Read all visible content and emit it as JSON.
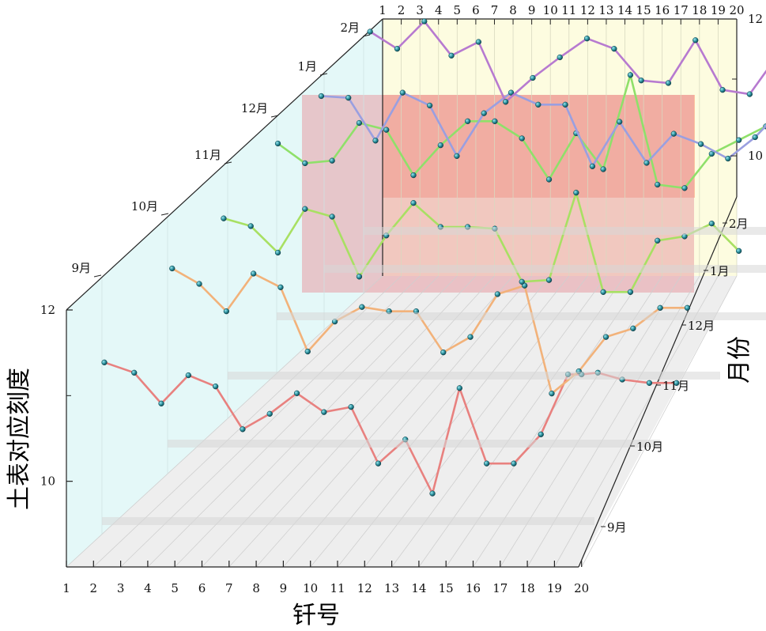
{
  "chart_data": {
    "type": "line-3d-waterfall",
    "xlabel": "钎号",
    "ylabel": "土表对应刻度",
    "zlabel": "月份",
    "x_ticks": [
      "1",
      "2",
      "3",
      "4",
      "5",
      "6",
      "7",
      "8",
      "9",
      "10",
      "11",
      "12",
      "13",
      "14",
      "15",
      "16",
      "17",
      "18",
      "19",
      "20"
    ],
    "y_ticks": [
      "10",
      "12"
    ],
    "ylim": [
      9.0,
      12.0
    ],
    "month_ticks": [
      "9月",
      "10月",
      "11月",
      "12月",
      "1月",
      "2月"
    ],
    "series": [
      {
        "name": "9月",
        "color": "#e8817f",
        "x": [
          2.4,
          3.5,
          4.5,
          5.5,
          6.5,
          7.5,
          8.5,
          9.5,
          10.5,
          11.5,
          12.5,
          13.5,
          14.5,
          15.5,
          16.5,
          17.5,
          18.5,
          19.5,
          20.0,
          20.6,
          21.5,
          22.5,
          23.5
        ],
        "values": [
          10.88,
          10.76,
          10.4,
          10.73,
          10.6,
          10.1,
          10.28,
          10.52,
          10.3,
          10.36,
          9.7,
          9.98,
          9.35,
          10.58,
          9.7,
          9.7,
          10.04,
          10.74,
          10.74,
          10.76,
          10.68,
          10.64,
          10.64
        ]
      },
      {
        "name": "10月",
        "color": "#f2b27a",
        "x": [
          4.9,
          5.9,
          6.9,
          7.9,
          8.9,
          9.9,
          10.9,
          11.9,
          12.9,
          13.9,
          14.9,
          15.9,
          16.9,
          17.9,
          18.9,
          19.9,
          20.9,
          21.9,
          22.9,
          23.9
        ],
        "values": [
          11.1,
          10.92,
          10.6,
          11.04,
          10.88,
          10.13,
          10.48,
          10.65,
          10.6,
          10.6,
          10.12,
          10.3,
          10.8,
          10.9,
          9.64,
          9.9,
          10.3,
          10.4,
          10.64,
          10.64
        ]
      },
      {
        "name": "11月",
        "color": "#a8e063",
        "x": [
          6.8,
          7.8,
          8.8,
          9.8,
          10.8,
          11.8,
          12.8,
          13.8,
          14.8,
          15.8,
          16.8,
          17.8,
          18.8,
          19.8,
          20.8,
          21.8,
          22.8,
          23.8,
          24.8,
          25.8
        ],
        "values": [
          10.9,
          10.81,
          10.5,
          11.01,
          10.92,
          10.22,
          10.7,
          11.08,
          10.8,
          10.8,
          10.78,
          10.16,
          10.18,
          11.2,
          10.04,
          10.04,
          10.64,
          10.69,
          10.84,
          10.52
        ]
      },
      {
        "name": "12月",
        "color": "#8fe06a",
        "x": [
          8.8,
          9.8,
          10.8,
          11.8,
          12.8,
          13.8,
          14.8,
          15.8,
          16.8,
          17.8,
          18.8,
          19.8,
          20.8,
          21.8,
          22.8,
          23.8,
          24.8,
          25.8,
          26.8,
          27.8
        ],
        "values": [
          11.1,
          10.87,
          10.9,
          11.34,
          11.26,
          10.73,
          11.08,
          11.36,
          11.36,
          11.16,
          10.68,
          11.22,
          10.8,
          11.9,
          10.62,
          10.58,
          10.98,
          11.14,
          11.3,
          11.26
        ]
      },
      {
        "name": "1月",
        "color": "#9a9fe0",
        "x": [
          10.4,
          11.4,
          12.4,
          13.4,
          14.4,
          15.4,
          16.4,
          17.4,
          18.4,
          19.4,
          20.4,
          21.4,
          22.4,
          23.4,
          24.4,
          25.4,
          26.4,
          27.4,
          28.4
        ],
        "values": [
          11.1,
          11.08,
          10.58,
          11.14,
          10.99,
          10.4,
          10.9,
          11.14,
          11.0,
          11.0,
          10.28,
          10.8,
          10.32,
          10.66,
          10.54,
          10.37,
          10.62,
          10.95,
          10.86
        ]
      },
      {
        "name": "2月",
        "color": "#b77ad0",
        "x": [
          12.2,
          13.2,
          14.2,
          15.2,
          16.2,
          17.2,
          18.2,
          19.2,
          20.2,
          21.2,
          22.2,
          23.2,
          24.2,
          25.2,
          26.2,
          27.2,
          28.2,
          29.2
        ],
        "values": [
          11.4,
          11.2,
          11.52,
          11.12,
          11.28,
          10.58,
          10.86,
          11.1,
          11.32,
          11.2,
          10.83,
          10.8,
          11.3,
          10.72,
          10.67,
          11.11,
          10.77,
          10.93
        ]
      }
    ]
  }
}
